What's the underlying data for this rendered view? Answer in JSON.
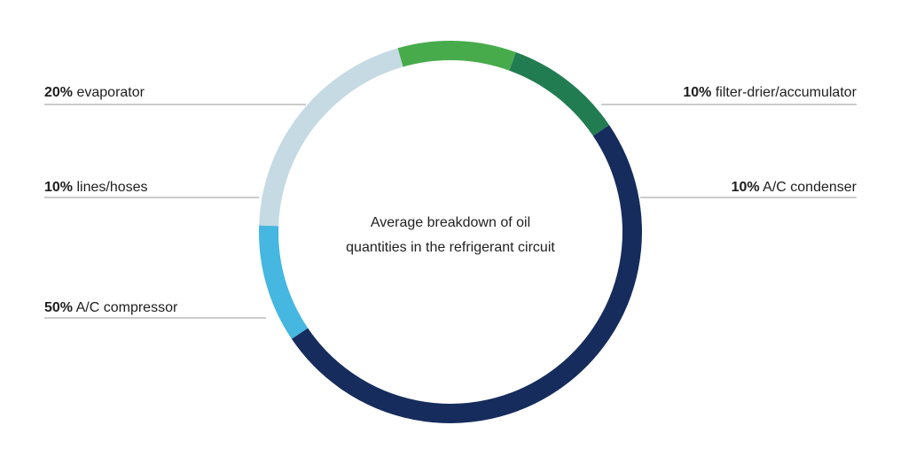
{
  "chart_data": {
    "type": "pie",
    "center_text_line1": "Average breakdown of oil",
    "center_text_line2": "quantities in the refrigerant circuit",
    "slices": [
      {
        "pct_label": "10%",
        "name": "filter-drier/accumulator",
        "value": 10,
        "color": "#47ab4c"
      },
      {
        "pct_label": "10%",
        "name": "A/C condenser",
        "value": 10,
        "color": "#227c52"
      },
      {
        "pct_label": "50%",
        "name": "A/C compressor",
        "value": 50,
        "color": "#162c5c"
      },
      {
        "pct_label": "10%",
        "name": "lines/hoses",
        "value": 10,
        "color": "#45b7e0"
      },
      {
        "pct_label": "20%",
        "name": "evaporator",
        "value": 20,
        "color": "#c5dae3"
      }
    ]
  }
}
